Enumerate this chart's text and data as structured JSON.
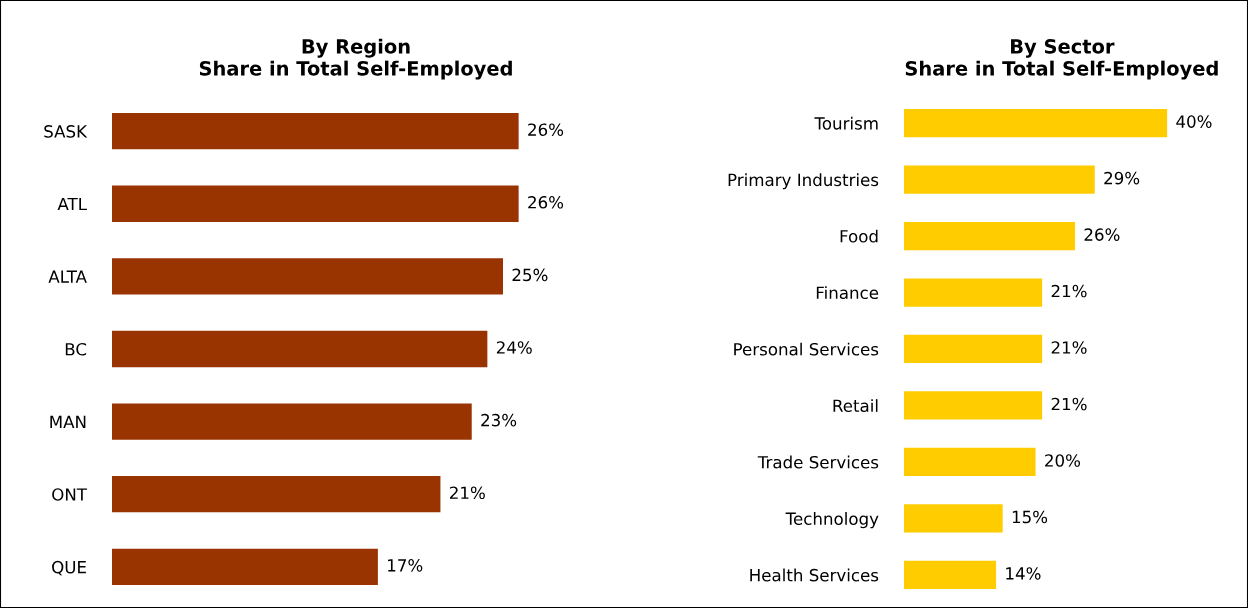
{
  "chart_data": [
    {
      "type": "bar",
      "orientation": "horizontal",
      "title": "By Region\nShare in Total Self-Employed",
      "categories": [
        "SASK",
        "ATL",
        "ALTA",
        "BC",
        "MAN",
        "ONT",
        "QUE"
      ],
      "values": [
        26,
        26,
        25,
        24,
        23,
        21,
        17
      ],
      "value_labels": [
        "26%",
        "26%",
        "25%",
        "24%",
        "23%",
        "21%",
        "17%"
      ],
      "color": "#993300",
      "grid": false,
      "legend": false
    },
    {
      "type": "bar",
      "orientation": "horizontal",
      "title": "By Sector\nShare in Total Self-Employed",
      "categories": [
        "Tourism",
        "Primary Industries",
        "Food",
        "Finance",
        "Personal Services",
        "Retail",
        "Trade Services",
        "Technology",
        "Health Services"
      ],
      "values": [
        40,
        29,
        26,
        21,
        21,
        21,
        20,
        15,
        14
      ],
      "value_labels": [
        "40%",
        "29%",
        "26%",
        "21%",
        "21%",
        "21%",
        "20%",
        "15%",
        "14%"
      ],
      "color": "#ffcc00",
      "grid": false,
      "legend": false
    }
  ]
}
